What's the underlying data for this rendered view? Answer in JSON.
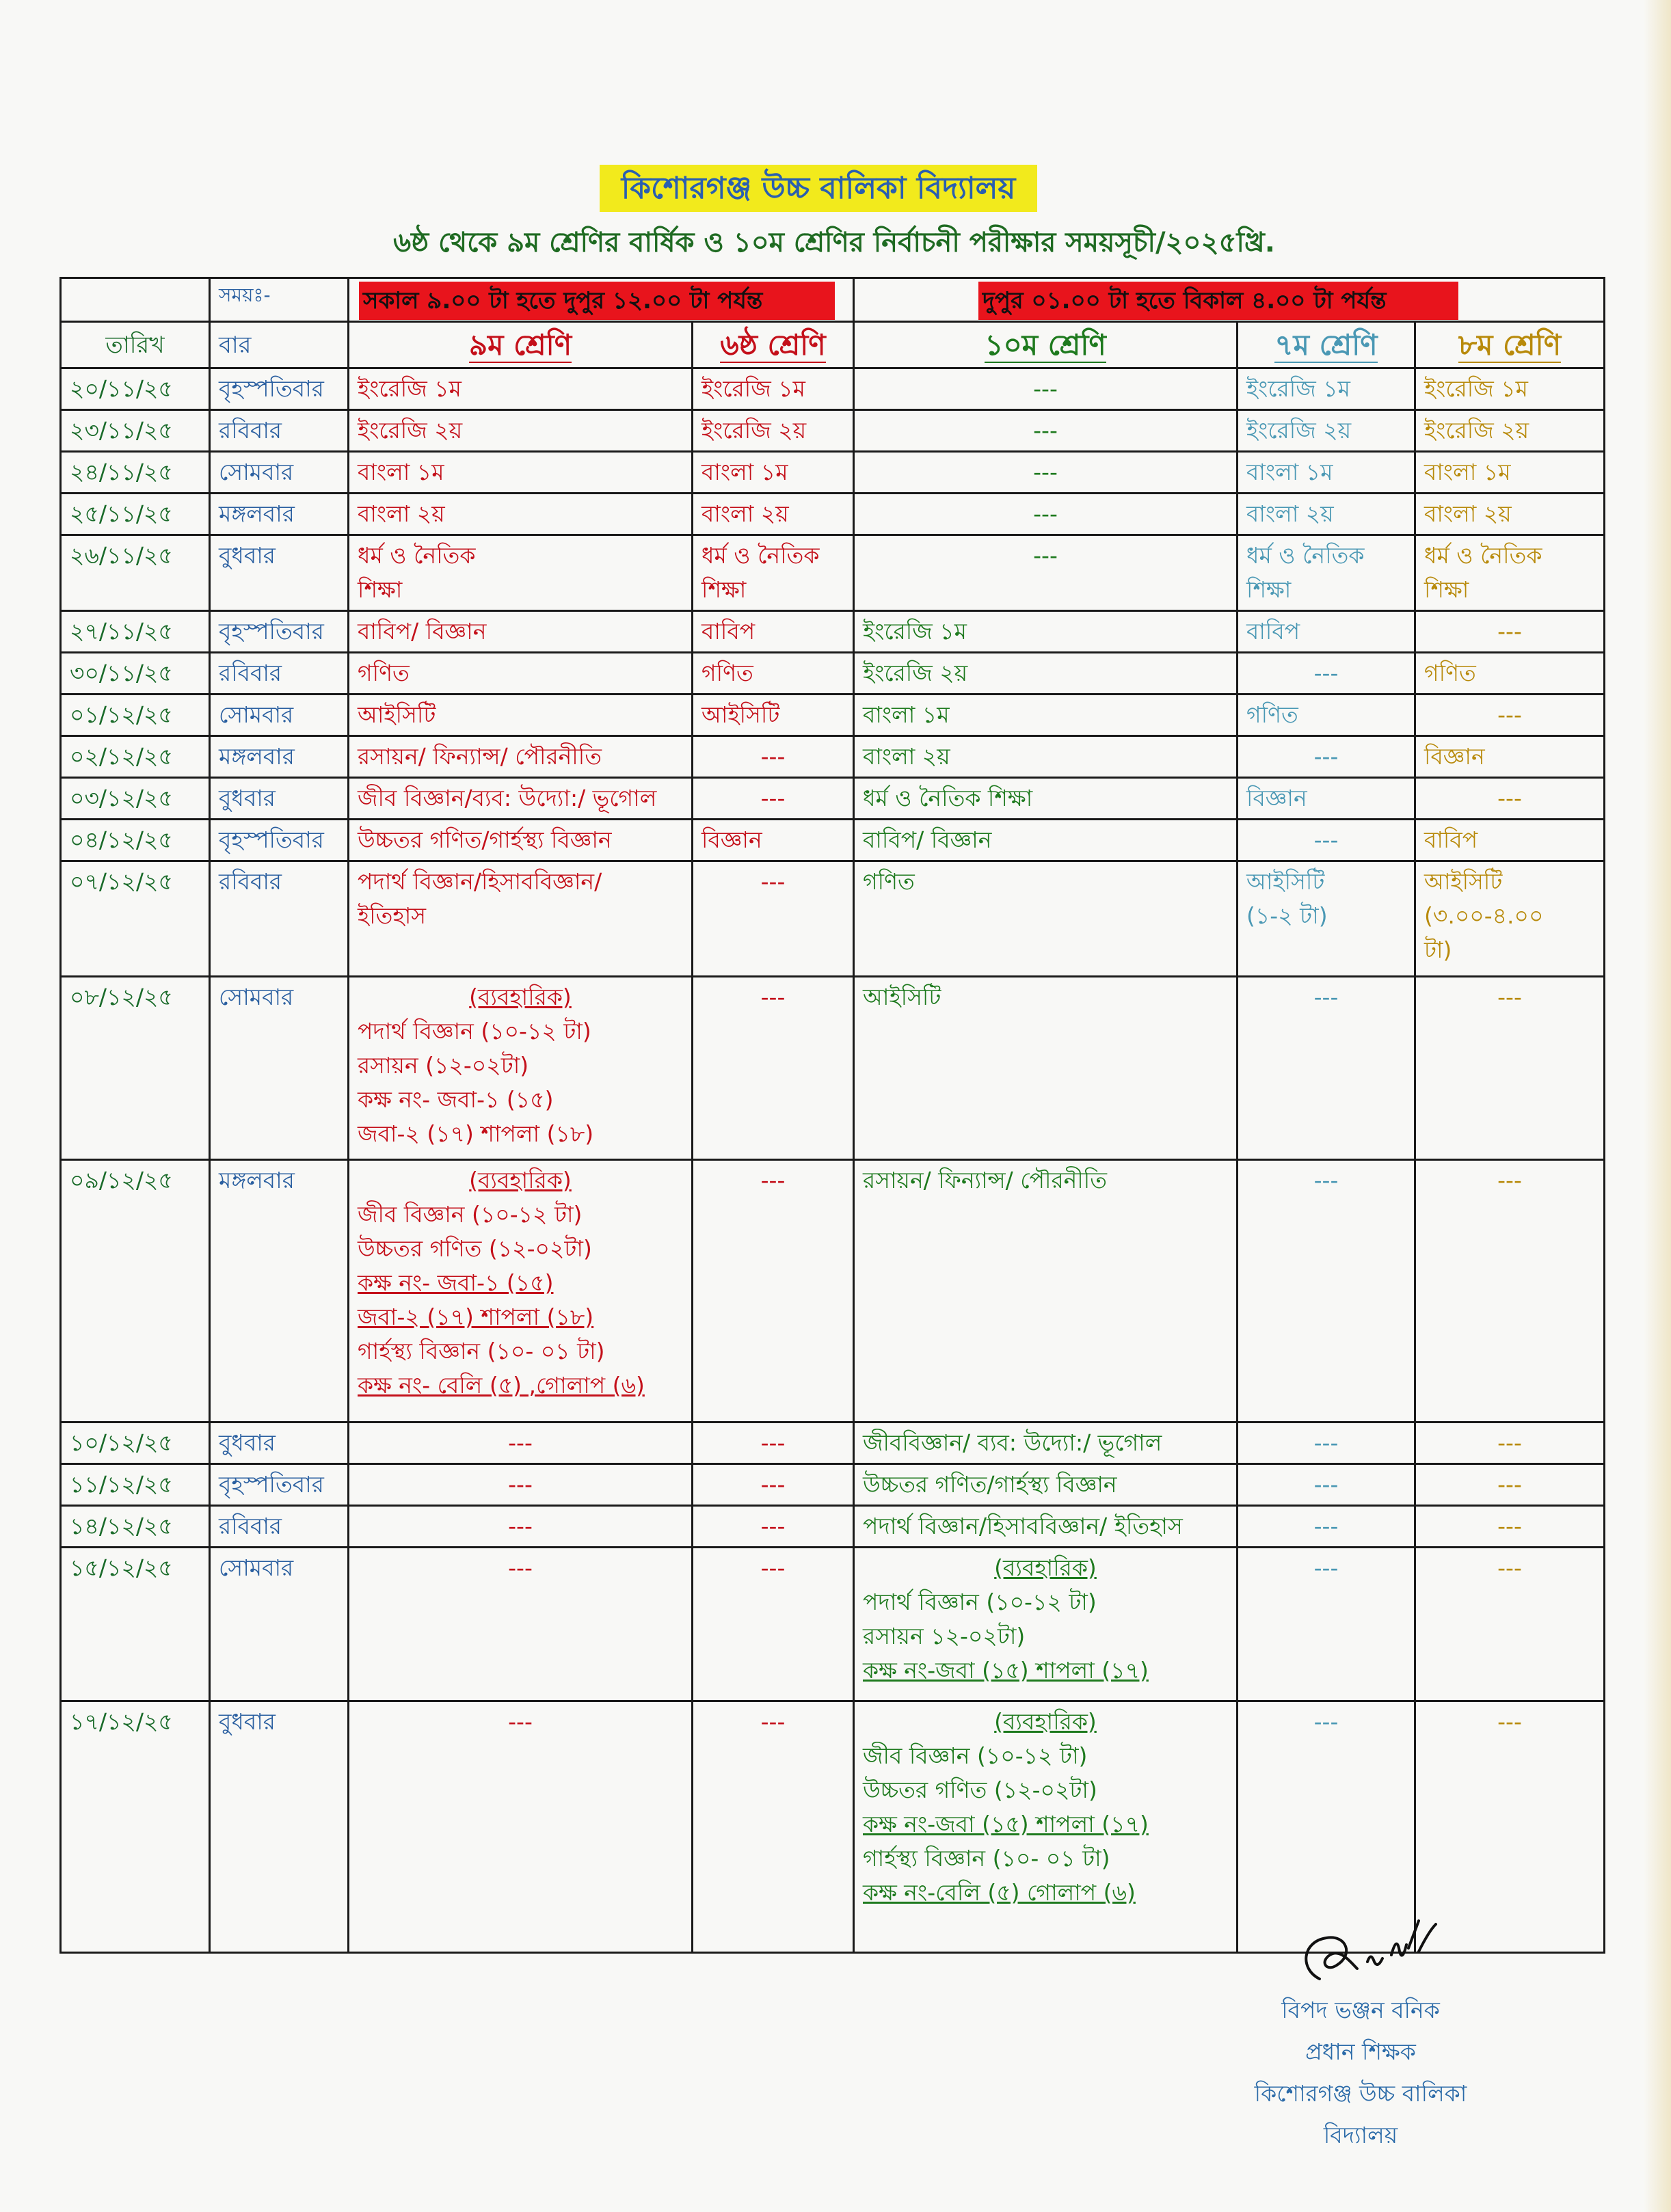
{
  "school_name": "কিশোরগঞ্জ উচ্চ বালিকা বিদ্যালয়",
  "subtitle": "৬ষ্ঠ থেকে ৯ম শ্রেণির বার্ষিক ও ১০ম শ্রেণির নির্বাচনী পরীক্ষার সময়সূচী/২০২৫খ্রি.",
  "colors": {
    "title_bg": "#f2ea1c",
    "banner_bg": "#e8141c",
    "date": "#1a6b2a",
    "day": "#2a5fa0",
    "class9_6": "#c4101a",
    "class10": "#1e7a1e",
    "class7": "#4a98b4",
    "class8": "#b88a0b"
  },
  "table": {
    "time_label": "সময়ঃ-",
    "morning_slot": "সকাল ৯.০০ টা হতে দুপুর ১২.০০ টা পর্যন্ত",
    "afternoon_slot": "দুপুর ০১.০০ টা হতে বিকাল ৪.০০ টা পর্যন্ত",
    "headers": {
      "date": "তারিখ",
      "day": "বার",
      "c9": "৯ম শ্রেণি",
      "c6": "৬ষ্ঠ শ্রেণি",
      "c10": "১০ম শ্রেণি",
      "c7": "৭ম শ্রেণি",
      "c8": "৮ম শ্রেণি"
    },
    "rows": [
      {
        "date": "২০/১১/২৫",
        "day": "বৃহস্পতিবার",
        "c9": [
          "ইংরেজি ১ম"
        ],
        "c6": [
          "ইংরেজি ১ম"
        ],
        "c10": [
          "---"
        ],
        "c7": [
          "ইংরেজি ১ম"
        ],
        "c8": [
          "ইংরেজি ১ম"
        ]
      },
      {
        "date": "২৩/১১/২৫",
        "day": "রবিবার",
        "c9": [
          "ইংরেজি ২য়"
        ],
        "c6": [
          "ইংরেজি ২য়"
        ],
        "c10": [
          "---"
        ],
        "c7": [
          "ইংরেজি ২য়"
        ],
        "c8": [
          "ইংরেজি ২য়"
        ]
      },
      {
        "date": "২৪/১১/২৫",
        "day": "সোমবার",
        "c9": [
          "বাংলা ১ম"
        ],
        "c6": [
          "বাংলা ১ম"
        ],
        "c10": [
          "---"
        ],
        "c7": [
          "বাংলা ১ম"
        ],
        "c8": [
          "বাংলা ১ম"
        ]
      },
      {
        "date": "২৫/১১/২৫",
        "day": "মঙ্গলবার",
        "c9": [
          "বাংলা ২য়"
        ],
        "c6": [
          "বাংলা ২য়"
        ],
        "c10": [
          "---"
        ],
        "c7": [
          "বাংলা ২য়"
        ],
        "c8": [
          "বাংলা ২য়"
        ]
      },
      {
        "date": "২৬/১১/২৫",
        "day": "বুধবার",
        "c9": [
          "ধর্ম ও নৈতিক",
          "শিক্ষা"
        ],
        "c6": [
          "ধর্ম ও নৈতিক",
          "শিক্ষা"
        ],
        "c10": [
          "---"
        ],
        "c7": [
          "ধর্ম ও নৈতিক",
          "শিক্ষা"
        ],
        "c8": [
          "ধর্ম ও নৈতিক",
          "শিক্ষা"
        ]
      },
      {
        "date": "২৭/১১/২৫",
        "day": "বৃহস্পতিবার",
        "c9": [
          "বাবিপ/ বিজ্ঞান"
        ],
        "c6": [
          "বাবিপ"
        ],
        "c10": [
          "ইংরেজি ১ম"
        ],
        "c7": [
          "বাবিপ"
        ],
        "c8": [
          "---"
        ]
      },
      {
        "date": "৩০/১১/২৫",
        "day": "রবিবার",
        "c9": [
          "গণিত"
        ],
        "c6": [
          "গণিত"
        ],
        "c10": [
          "ইংরেজি ২য়"
        ],
        "c7": [
          "---"
        ],
        "c8": [
          "গণিত"
        ]
      },
      {
        "date": "০১/১২/২৫",
        "day": "সোমবার",
        "c9": [
          "আইসিটি"
        ],
        "c6": [
          "আইসিটি"
        ],
        "c10": [
          "বাংলা ১ম"
        ],
        "c7": [
          "গণিত"
        ],
        "c8": [
          "---"
        ]
      },
      {
        "date": "০২/১২/২৫",
        "day": "মঙ্গলবার",
        "c9": [
          "রসায়ন/ ফিন্যান্স/ পৌরনীতি"
        ],
        "c6": [
          "---"
        ],
        "c10": [
          "বাংলা ২য়"
        ],
        "c7": [
          "---"
        ],
        "c8": [
          "বিজ্ঞান"
        ]
      },
      {
        "date": "০৩/১২/২৫",
        "day": "বুধবার",
        "c9": [
          "জীব বিজ্ঞান/ব্যব: উদ্যো:/ ভূগোল"
        ],
        "c6": [
          "---"
        ],
        "c10": [
          "ধর্ম ও নৈতিক শিক্ষা"
        ],
        "c7": [
          "বিজ্ঞান"
        ],
        "c8": [
          "---"
        ]
      },
      {
        "date": "০৪/১২/২৫",
        "day": "বৃহস্পতিবার",
        "c9": [
          "উচ্চতর গণিত/গার্হস্থ্য বিজ্ঞান"
        ],
        "c6": [
          "বিজ্ঞান"
        ],
        "c10": [
          "বাবিপ/ বিজ্ঞান"
        ],
        "c7": [
          "---"
        ],
        "c8": [
          "বাবিপ"
        ]
      },
      {
        "date": "০৭/১২/২৫",
        "day": "রবিবার",
        "c9": [
          "পদার্থ বিজ্ঞান/হিসাববিজ্ঞান/",
          "ইতিহাস"
        ],
        "c6": [
          "---"
        ],
        "c10": [
          "গণিত"
        ],
        "c7": [
          "আইসিটি",
          "(১-২ টা)"
        ],
        "c8": [
          "আইসিটি",
          "(৩.০০-৪.০০",
          "টা)"
        ]
      },
      {
        "date": "০৮/১২/২৫",
        "day": "সোমবার",
        "c9": [
          "(ব্যবহারিক)",
          "পদার্থ বিজ্ঞান (১০-১২ টা)",
          "রসায়ন (১২-০২টা)",
          "কক্ষ নং- জবা-১ (১৫)",
          "জবা-২ (১৭) শাপলা (১৮)"
        ],
        "c6": [
          "---"
        ],
        "c10": [
          "আইসিটি"
        ],
        "c7": [
          "---"
        ],
        "c8": [
          "---"
        ]
      },
      {
        "date": "০৯/১২/২৫",
        "day": "মঙ্গলবার",
        "c9": [
          "(ব্যবহারিক)",
          "জীব বিজ্ঞান (১০-১২ টা)",
          "উচ্চতর গণিত (১২-০২টা)",
          "কক্ষ নং- জবা-১ (১৫)",
          "জবা-২ (১৭) শাপলা (১৮)",
          "গার্হস্থ্য বিজ্ঞান (১০- ০১ টা)",
          "কক্ষ নং- বেলি (৫) ,গোলাপ (৬)"
        ],
        "c6": [
          "---"
        ],
        "c10": [
          "রসায়ন/ ফিন্যান্স/ পৌরনীতি"
        ],
        "c7": [
          "---"
        ],
        "c8": [
          "---"
        ]
      },
      {
        "date": "১০/১২/২৫",
        "day": "বুধবার",
        "c9": [
          "---"
        ],
        "c6": [
          "---"
        ],
        "c10": [
          "জীববিজ্ঞান/ ব্যব: উদ্যো:/ ভূগোল"
        ],
        "c7": [
          "---"
        ],
        "c8": [
          "---"
        ]
      },
      {
        "date": "১১/১২/২৫",
        "day": "বৃহস্পতিবার",
        "c9": [
          "---"
        ],
        "c6": [
          "---"
        ],
        "c10": [
          "উচ্চতর গণিত/গার্হস্থ্য বিজ্ঞান"
        ],
        "c7": [
          "---"
        ],
        "c8": [
          "---"
        ]
      },
      {
        "date": "১৪/১২/২৫",
        "day": "রবিবার",
        "c9": [
          "---"
        ],
        "c6": [
          "---"
        ],
        "c10": [
          "পদার্থ বিজ্ঞান/হিসাববিজ্ঞান/ ইতিহাস"
        ],
        "c7": [
          "---"
        ],
        "c8": [
          "---"
        ]
      },
      {
        "date": "১৫/১২/২৫",
        "day": "সোমবার",
        "c9": [
          "---"
        ],
        "c6": [
          "---"
        ],
        "c10": [
          "(ব্যবহারিক)",
          "পদার্থ বিজ্ঞান (১০-১২ টা)",
          "রসায়ন ১২-০২টা)",
          "কক্ষ নং-জবা (১৫) শাপলা (১৭)"
        ],
        "c7": [
          "---"
        ],
        "c8": [
          "---"
        ]
      },
      {
        "date": "১৭/১২/২৫",
        "day": "বুধবার",
        "c9": [
          "---"
        ],
        "c6": [
          "---"
        ],
        "c10": [
          "(ব্যবহারিক)",
          "জীব বিজ্ঞান (১০-১২ টা)",
          "উচ্চতর গণিত (১২-০২টা)",
          "কক্ষ নং-জবা (১৫) শাপলা (১৭)",
          "গার্হস্থ্য বিজ্ঞান (১০- ০১ টা)",
          "কক্ষ নং-বেলি (৫) গোলাপ (৬)"
        ],
        "c7": [
          "---"
        ],
        "c8": [
          "---"
        ]
      }
    ]
  },
  "signature": {
    "name": "বিপদ ভঞ্জন বনিক",
    "designation": "প্রধান শিক্ষক",
    "institution": "কিশোরগঞ্জ উচ্চ বালিকা বিদ্যালয়"
  }
}
